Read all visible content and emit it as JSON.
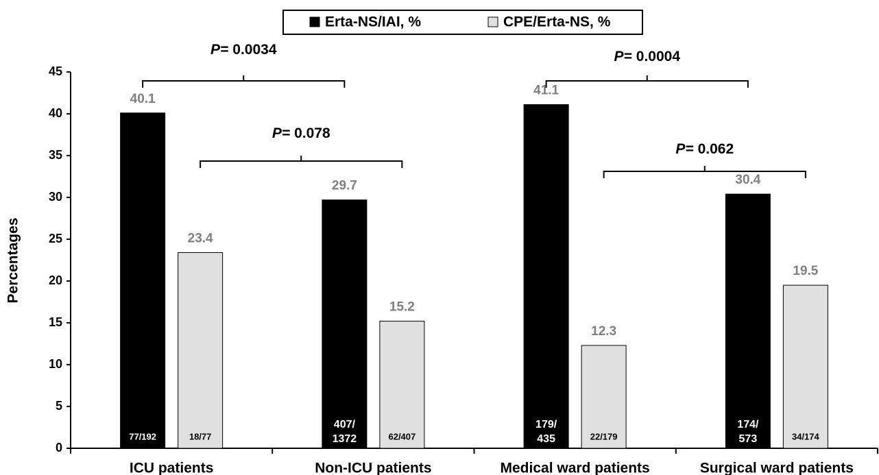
{
  "chart_data": {
    "type": "bar",
    "ylabel": "Percentages",
    "categories": [
      "ICU patients",
      "Non-ICU patients",
      "Medical ward patients",
      "Surgical ward patients"
    ],
    "series": [
      {
        "name": "Erta-NS/IAI, %",
        "color": "#000000",
        "values": [
          40.1,
          29.7,
          41.1,
          30.4
        ],
        "bar_labels": [
          [
            "77/192"
          ],
          [
            "407/",
            "1372"
          ],
          [
            "179/",
            "435"
          ],
          [
            "174/",
            "573"
          ]
        ]
      },
      {
        "name": "CPE/Erta-NS, %",
        "color": "#e0e0e0",
        "values": [
          23.4,
          15.2,
          12.3,
          19.5
        ],
        "bar_labels": [
          [
            "18/77"
          ],
          [
            "62/407"
          ],
          [
            "22/179"
          ],
          [
            "34/174"
          ]
        ]
      }
    ],
    "annotations": [
      {
        "label": "P=",
        "value": "0.0034"
      },
      {
        "label": "P=",
        "value": "0.078"
      },
      {
        "label": "P=",
        "value": "0.0004"
      },
      {
        "label": "P=",
        "value": "0.062"
      }
    ],
    "ylim": [
      0,
      45
    ],
    "yticks": [
      0,
      5,
      10,
      15,
      20,
      25,
      30,
      35,
      40,
      45
    ],
    "legend": "top"
  }
}
